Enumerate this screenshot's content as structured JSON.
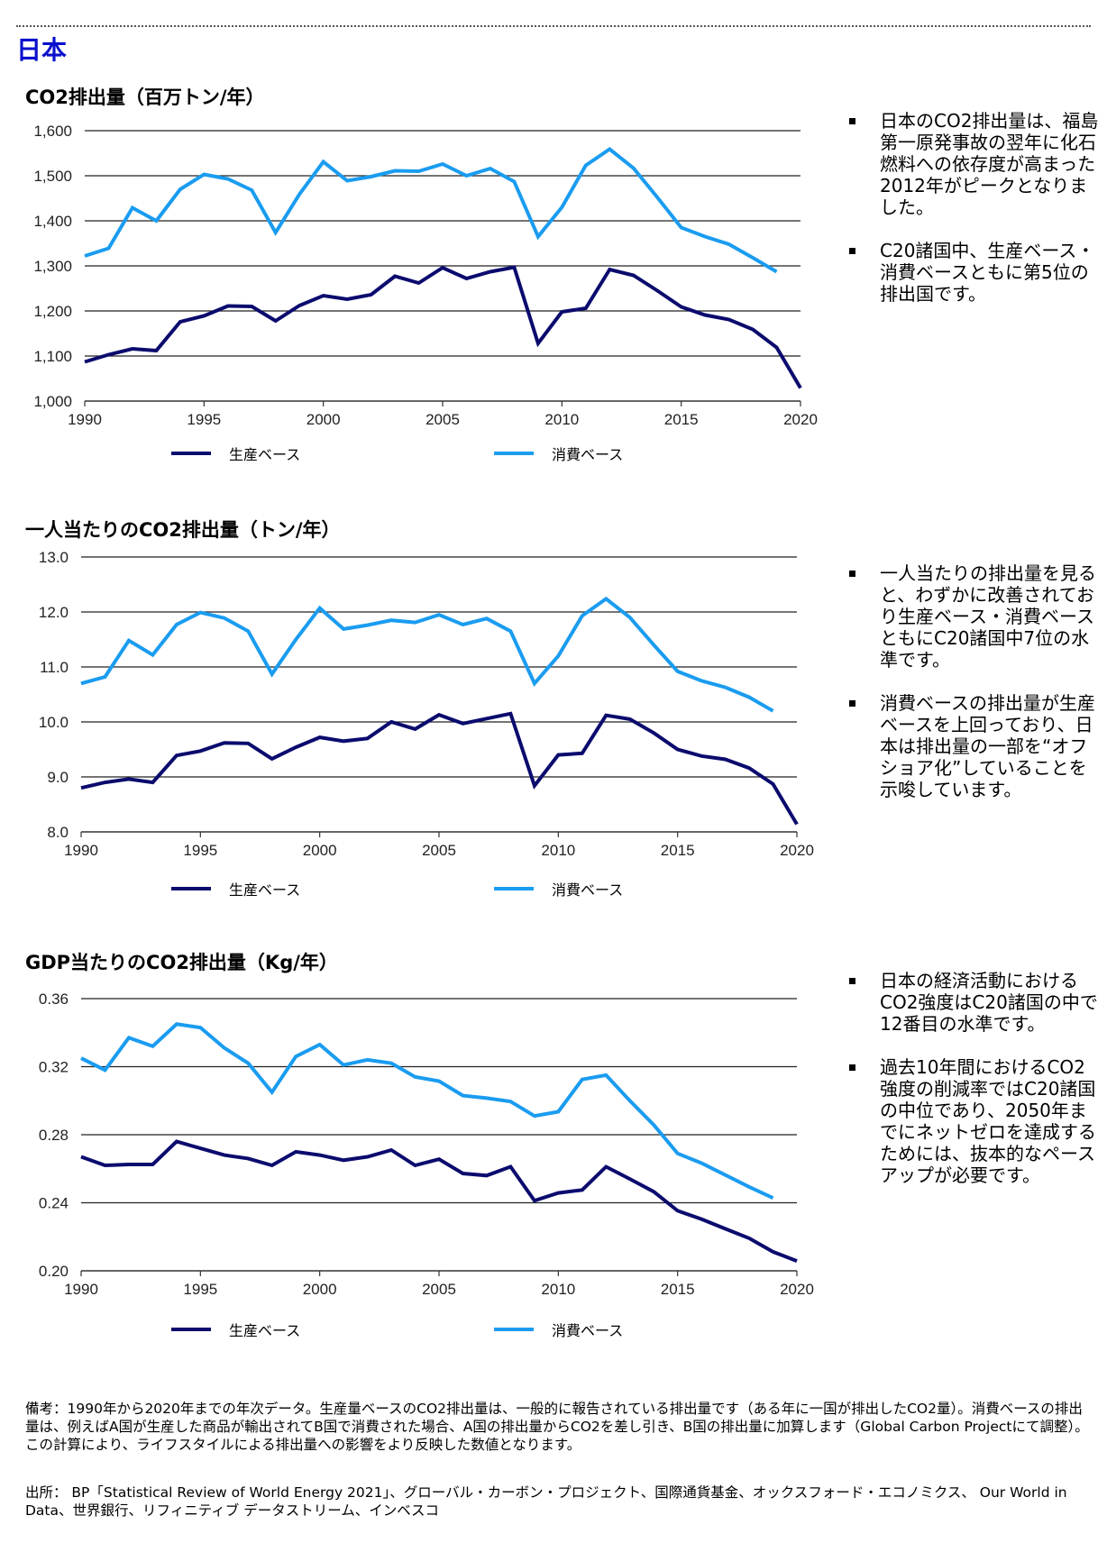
{
  "page": {
    "country": "日本"
  },
  "legend": {
    "production": "生産ベース",
    "consumption": "消費ベース"
  },
  "colors": {
    "production": "#0b0b6e",
    "consumption": "#1a9cf0",
    "country_title": "#0a10cc"
  },
  "chart_data": [
    {
      "type": "line",
      "title": "CO2排出量（百万トン/年）",
      "xlabel": "",
      "ylabel": "",
      "x": [
        1990,
        1991,
        1992,
        1993,
        1994,
        1995,
        1996,
        1997,
        1998,
        1999,
        2000,
        2001,
        2002,
        2003,
        2004,
        2005,
        2006,
        2007,
        2008,
        2009,
        2010,
        2011,
        2012,
        2013,
        2014,
        2015,
        2016,
        2017,
        2018,
        2019,
        2020
      ],
      "xlim": [
        1990,
        2020
      ],
      "ylim": [
        1000,
        1600
      ],
      "xticks": [
        "1990",
        "1995",
        "2000",
        "2005",
        "2010",
        "2015",
        "2020"
      ],
      "yticks": [
        "1,000",
        "1,100",
        "1,200",
        "1,300",
        "1,400",
        "1,500",
        "1,600"
      ],
      "grid": true,
      "legend_position": "bottom",
      "series": [
        {
          "name": "生産ベース",
          "values": [
            1087,
            1103,
            1116,
            1112,
            1176,
            1189,
            1211,
            1210,
            1178,
            1212,
            1234,
            1226,
            1236,
            1277,
            1262,
            1296,
            1272,
            1287,
            1297,
            1128,
            1198,
            1206,
            1292,
            1279,
            1245,
            1209,
            1191,
            1181,
            1159,
            1119,
            1029
          ]
        },
        {
          "name": "消費ベース",
          "values": [
            1322,
            1339,
            1429,
            1400,
            1470,
            1503,
            1493,
            1468,
            1374,
            1459,
            1531,
            1489,
            1498,
            1511,
            1510,
            1526,
            1500,
            1516,
            1487,
            1365,
            1430,
            1523,
            1559,
            1517,
            1452,
            1385,
            1365,
            1348,
            1318,
            1287,
            null
          ]
        }
      ]
    },
    {
      "type": "line",
      "title": "一人当たりのCO2排出量（トン/年）",
      "xlabel": "",
      "ylabel": "",
      "x": [
        1990,
        1991,
        1992,
        1993,
        1994,
        1995,
        1996,
        1997,
        1998,
        1999,
        2000,
        2001,
        2002,
        2003,
        2004,
        2005,
        2006,
        2007,
        2008,
        2009,
        2010,
        2011,
        2012,
        2013,
        2014,
        2015,
        2016,
        2017,
        2018,
        2019,
        2020
      ],
      "xlim": [
        1990,
        2020
      ],
      "ylim": [
        8.0,
        13.0
      ],
      "xticks": [
        "1990",
        "1995",
        "2000",
        "2005",
        "2010",
        "2015",
        "2020"
      ],
      "yticks": [
        "8.0",
        "9.0",
        "10.0",
        "11.0",
        "12.0",
        "13.0"
      ],
      "grid": true,
      "legend_position": "bottom",
      "series": [
        {
          "name": "生産ベース",
          "values": [
            8.8,
            8.9,
            8.96,
            8.9,
            9.39,
            9.47,
            9.62,
            9.61,
            9.33,
            9.54,
            9.72,
            9.65,
            9.7,
            10.0,
            9.87,
            10.13,
            9.97,
            10.06,
            10.15,
            8.84,
            9.4,
            9.43,
            10.12,
            10.05,
            9.8,
            9.5,
            9.38,
            9.32,
            9.16,
            8.87,
            8.14
          ]
        },
        {
          "name": "消費ベース",
          "values": [
            10.7,
            10.82,
            11.48,
            11.22,
            11.77,
            11.99,
            11.89,
            11.65,
            10.87,
            11.5,
            12.07,
            11.69,
            11.76,
            11.85,
            11.81,
            11.95,
            11.77,
            11.88,
            11.65,
            10.7,
            11.2,
            11.93,
            12.24,
            11.9,
            11.4,
            10.92,
            10.75,
            10.63,
            10.45,
            10.2,
            null
          ]
        }
      ]
    },
    {
      "type": "line",
      "title": "GDP当たりのCO2排出量（Kg/年）",
      "xlabel": "",
      "ylabel": "",
      "x": [
        1990,
        1991,
        1992,
        1993,
        1994,
        1995,
        1996,
        1997,
        1998,
        1999,
        2000,
        2001,
        2002,
        2003,
        2004,
        2005,
        2006,
        2007,
        2008,
        2009,
        2010,
        2011,
        2012,
        2013,
        2014,
        2015,
        2016,
        2017,
        2018,
        2019,
        2020
      ],
      "xlim": [
        1990,
        2020
      ],
      "ylim": [
        0.2,
        0.36
      ],
      "xticks": [
        "1990",
        "1995",
        "2000",
        "2005",
        "2010",
        "2015",
        "2020"
      ],
      "yticks": [
        "0.20",
        "0.24",
        "0.28",
        "0.32",
        "0.36"
      ],
      "grid": true,
      "legend_position": "bottom",
      "series": [
        {
          "name": "生産ベース",
          "values": [
            0.267,
            0.262,
            0.2625,
            0.2625,
            0.276,
            0.272,
            0.268,
            0.266,
            0.262,
            0.27,
            0.268,
            0.265,
            0.267,
            0.271,
            0.262,
            0.2656,
            0.2572,
            0.256,
            0.2612,
            0.2412,
            0.2458,
            0.2475,
            0.2612,
            0.254,
            0.2465,
            0.2353,
            0.2304,
            0.2247,
            0.2191,
            0.2112,
            0.2058
          ]
        },
        {
          "name": "消費ベース",
          "values": [
            0.325,
            0.318,
            0.337,
            0.332,
            0.345,
            0.343,
            0.331,
            0.322,
            0.305,
            0.326,
            0.333,
            0.321,
            0.324,
            0.322,
            0.314,
            0.3115,
            0.303,
            0.3015,
            0.2995,
            0.291,
            0.2935,
            0.3125,
            0.315,
            0.3,
            0.2858,
            0.269,
            0.2633,
            0.2563,
            0.2493,
            0.2428,
            null
          ]
        }
      ]
    }
  ],
  "notes": [
    [
      "日本のCO2排出量は、福島第一原発事故の翌年に化石燃料への依存度が高まった2012年がピークとなりました。",
      "C20諸国中、生産ベース・消費ベースともに第5位の排出国です。"
    ],
    [
      "一人当たりの排出量を見ると、わずかに改善されており生産ベース・消費ベースともにC20諸国中7位の水準です。",
      "消費ベースの排出量が生産ベースを上回っており、日本は排出量の一部を“オフショア化”していることを示唆しています。"
    ],
    [
      "日本の経済活動におけるCO2強度はC20諸国の中で12番目の水準です。",
      "過去10年間におけるCO2強度の削減率ではC20諸国の中位であり、2050年までにネットゼロを達成するためには、抜本的なペースアップが必要です。"
    ]
  ],
  "footer": {
    "remarks": "備考：1990年から2020年までの年次データ。生産量ベースのCO2排出量は、一般的に報告されている排出量です（ある年に一国が排出したCO2量）。消費ベースの排出量は、例えばA国が生産した商品が輸出されてB国で消費された場合、A国の排出量からCO2を差し引き、B国の排出量に加算します（Global Carbon Projectにて調整）。この計算により、ライフスタイルによる排出量への影響をより反映した数値となります。",
    "sources": "出所： BP「Statistical Review of World Energy 2021」、グローバル・カーボン・プロジェクト、国際通貨基金、オックスフォード・エコノミクス、 Our World in Data、世界銀行、リフィニティブ データストリーム、インベスコ"
  }
}
